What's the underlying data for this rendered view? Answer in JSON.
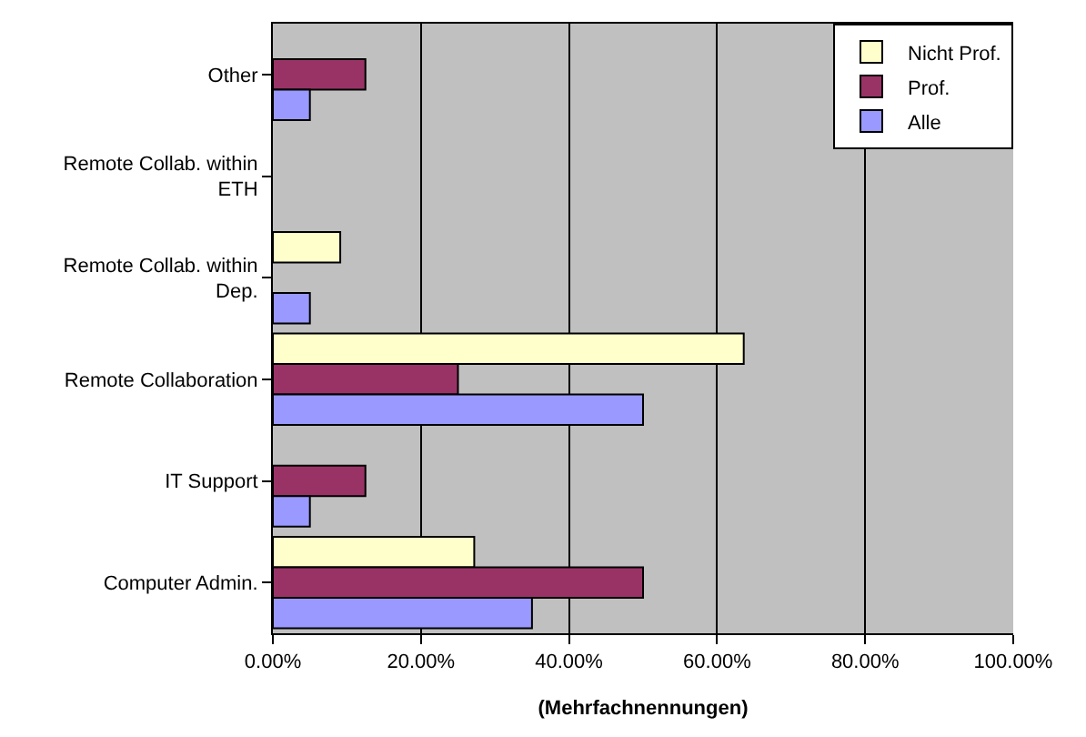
{
  "chart_data": {
    "type": "bar",
    "orientation": "horizontal",
    "xlabel": "(Mehrfachnennungen)",
    "categories": [
      "Other",
      "Remote Collab. within ETH",
      "Remote Collab. within Dep.",
      "Remote Collaboration",
      "IT Support",
      "Computer Admin."
    ],
    "series": [
      {
        "name": "Nicht Prof.",
        "color": "#ffffcc",
        "values": [
          null,
          null,
          9.1,
          63.6,
          null,
          27.2
        ]
      },
      {
        "name": "Prof.",
        "color": "#993366",
        "values": [
          12.5,
          null,
          null,
          25,
          12.5,
          50
        ]
      },
      {
        "name": "Alle",
        "color": "#9999ff",
        "values": [
          5,
          null,
          5,
          50,
          5,
          35
        ]
      }
    ],
    "xlim": [
      0,
      100
    ],
    "xticks": [
      {
        "value": 0,
        "label": "0.00%"
      },
      {
        "value": 20,
        "label": "20.00%"
      },
      {
        "value": 40,
        "label": "40.00%"
      },
      {
        "value": 60,
        "label": "60.00%"
      },
      {
        "value": 80,
        "label": "80.00%"
      },
      {
        "value": 100,
        "label": "100.00%"
      }
    ],
    "grid": "x",
    "legend": "top right"
  }
}
